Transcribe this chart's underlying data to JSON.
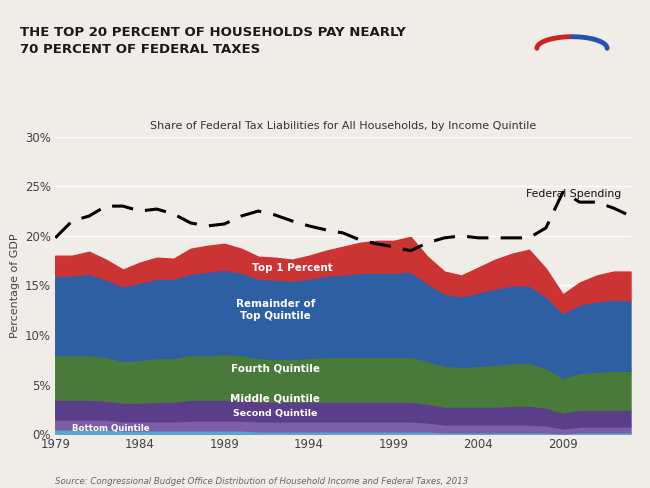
{
  "title": "THE TOP 20 PERCENT OF HOUSEHOLDS PAY NEARLY\n70 PERCENT OF FEDERAL TAXES",
  "subtitle": "Share of Federal Tax Liabilities for All Households, by Income Quintile",
  "source": "Source: Congressional Budget Office Distribution of Household Income and Federal Taxes, 2013",
  "ylabel": "Percentage of GDP",
  "years": [
    1979,
    1980,
    1981,
    1982,
    1983,
    1984,
    1985,
    1986,
    1987,
    1988,
    1989,
    1990,
    1991,
    1992,
    1993,
    1994,
    1995,
    1996,
    1997,
    1998,
    1999,
    2000,
    2001,
    2002,
    2003,
    2004,
    2005,
    2006,
    2007,
    2008,
    2009,
    2010,
    2011,
    2012,
    2013
  ],
  "bottom_quintile": [
    0.5,
    0.5,
    0.5,
    0.5,
    0.4,
    0.4,
    0.4,
    0.4,
    0.4,
    0.4,
    0.4,
    0.4,
    0.3,
    0.3,
    0.3,
    0.3,
    0.3,
    0.3,
    0.3,
    0.3,
    0.3,
    0.3,
    0.3,
    0.2,
    0.2,
    0.2,
    0.2,
    0.2,
    0.2,
    0.2,
    0.1,
    0.2,
    0.2,
    0.2,
    0.2
  ],
  "second_quintile": [
    1.0,
    1.0,
    1.0,
    1.0,
    0.9,
    0.9,
    0.9,
    0.9,
    1.0,
    1.0,
    1.0,
    1.0,
    1.0,
    1.0,
    1.0,
    1.0,
    1.0,
    1.0,
    1.0,
    1.0,
    1.0,
    1.0,
    0.9,
    0.8,
    0.8,
    0.8,
    0.8,
    0.8,
    0.8,
    0.7,
    0.5,
    0.6,
    0.6,
    0.6,
    0.6
  ],
  "middle_quintile": [
    2.0,
    2.0,
    2.0,
    1.9,
    1.9,
    1.9,
    2.0,
    2.0,
    2.1,
    2.1,
    2.1,
    2.1,
    2.0,
    2.0,
    2.0,
    2.0,
    2.0,
    2.0,
    2.0,
    2.0,
    2.0,
    2.0,
    1.9,
    1.8,
    1.8,
    1.8,
    1.8,
    1.9,
    1.9,
    1.8,
    1.6,
    1.7,
    1.7,
    1.7,
    1.7
  ],
  "fourth_quintile": [
    4.5,
    4.5,
    4.5,
    4.4,
    4.2,
    4.3,
    4.4,
    4.4,
    4.5,
    4.5,
    4.6,
    4.5,
    4.4,
    4.3,
    4.3,
    4.4,
    4.5,
    4.5,
    4.5,
    4.5,
    4.5,
    4.5,
    4.3,
    4.1,
    4.0,
    4.1,
    4.2,
    4.3,
    4.3,
    4.0,
    3.5,
    3.7,
    3.8,
    3.9,
    3.9
  ],
  "remainder_top": [
    8.0,
    8.0,
    8.2,
    7.8,
    7.5,
    7.8,
    8.0,
    8.0,
    8.2,
    8.4,
    8.5,
    8.3,
    8.0,
    8.0,
    7.9,
    8.0,
    8.2,
    8.3,
    8.5,
    8.5,
    8.5,
    8.6,
    7.8,
    7.3,
    7.1,
    7.4,
    7.7,
    7.8,
    7.8,
    7.2,
    6.5,
    6.9,
    7.1,
    7.2,
    7.1
  ],
  "top_1_percent": [
    2.0,
    2.0,
    2.2,
    2.0,
    1.7,
    2.0,
    2.1,
    2.0,
    2.5,
    2.6,
    2.6,
    2.4,
    2.2,
    2.2,
    2.1,
    2.3,
    2.5,
    2.8,
    3.0,
    3.2,
    3.2,
    3.5,
    2.7,
    2.2,
    2.1,
    2.5,
    2.9,
    3.2,
    3.6,
    2.8,
    1.9,
    2.2,
    2.6,
    2.8,
    2.9
  ],
  "federal_spending": [
    19.8,
    21.5,
    22.0,
    23.0,
    23.0,
    22.5,
    22.7,
    22.2,
    21.3,
    21.0,
    21.2,
    22.0,
    22.5,
    22.1,
    21.5,
    21.0,
    20.6,
    20.3,
    19.6,
    19.2,
    18.9,
    18.5,
    19.3,
    19.8,
    20.0,
    19.8,
    19.8,
    19.8,
    19.8,
    20.8,
    24.4,
    23.4,
    23.4,
    22.8,
    22.0
  ],
  "colors": {
    "bottom_quintile": "#5ba3d0",
    "second_quintile": "#7b5ea7",
    "middle_quintile": "#5a3e8a",
    "fourth_quintile": "#4a7a3a",
    "remainder_top": "#2e5fa3",
    "top_1_percent": "#cc3333"
  },
  "background_color": "#f0ede8",
  "header_background": "#ffffff",
  "ylim": [
    0,
    30
  ],
  "yticks": [
    0,
    5,
    10,
    15,
    20,
    25,
    30
  ],
  "xticks": [
    1979,
    1984,
    1989,
    1994,
    1999,
    2004,
    2009
  ]
}
